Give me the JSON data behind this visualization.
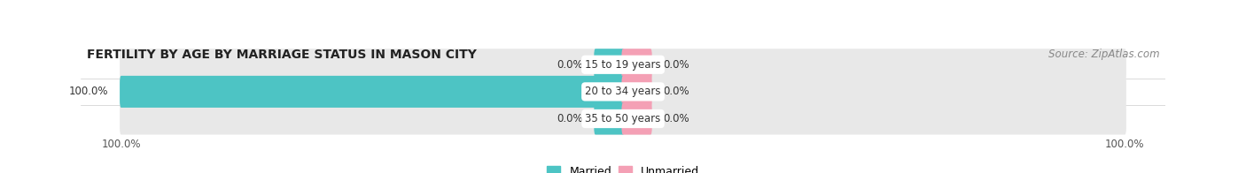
{
  "title": "FERTILITY BY AGE BY MARRIAGE STATUS IN MASON CITY",
  "source": "Source: ZipAtlas.com",
  "categories": [
    "15 to 19 years",
    "20 to 34 years",
    "35 to 50 years"
  ],
  "married_values": [
    0.0,
    100.0,
    0.0
  ],
  "unmarried_values": [
    0.0,
    0.0,
    0.0
  ],
  "married_color": "#4dc4c4",
  "unmarried_color": "#f4a0b5",
  "bar_bg_color": "#e8e8e8",
  "bar_height": 0.62,
  "xlim": 100.0,
  "min_colored_pct": 5.5,
  "title_fontsize": 10,
  "source_fontsize": 8.5,
  "value_fontsize": 8.5,
  "tick_fontsize": 8.5,
  "legend_fontsize": 9,
  "cat_label_fontsize": 8.5,
  "figure_bg": "#ffffff",
  "axes_bg": "#f5f5f5"
}
